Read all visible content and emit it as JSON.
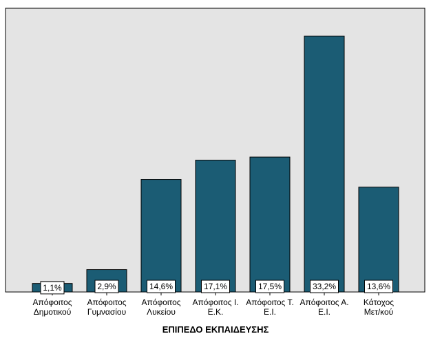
{
  "chart_data": {
    "type": "bar",
    "categories": [
      [
        "Απόφοιτος",
        "Δημοτικού"
      ],
      [
        "Απόφοιτος",
        "Γυμνασίου"
      ],
      [
        "Απόφοιτος",
        "Λυκείου"
      ],
      [
        "Απόφοιτος Ι.",
        "Ε.Κ."
      ],
      [
        "Απόφοιτος Τ.",
        "Ε.Ι."
      ],
      [
        "Απόφοιτος Α.",
        "Ε.Ι."
      ],
      [
        "Κάτοχος",
        "Μετ/κού"
      ]
    ],
    "values": [
      1.1,
      2.9,
      14.6,
      17.1,
      17.5,
      33.2,
      13.6
    ],
    "data_labels": [
      "1,1%",
      "2,9%",
      "14,6%",
      "17,1%",
      "17,5%",
      "33,2%",
      "13,6%"
    ],
    "xlabel": "ΕΠΙΠΕΔΟ ΕΚΠΑΙΔΕΥΣΗΣ",
    "ylim": [
      0,
      36.8
    ],
    "grid": false,
    "colors": {
      "bar": "#1b5c74",
      "bar_stroke": "#000000",
      "plot_background": "#e4e4e4",
      "plot_border": "#000000"
    }
  }
}
